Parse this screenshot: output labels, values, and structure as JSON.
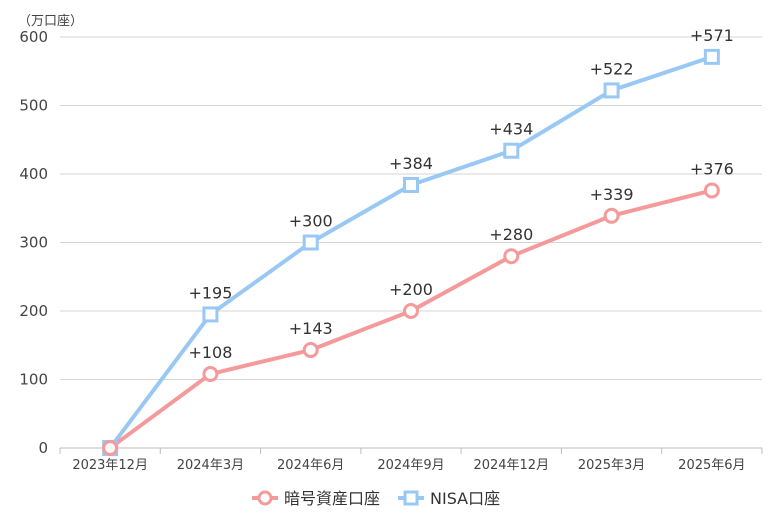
{
  "chart_data": {
    "type": "line",
    "unit_label": "（万口座）",
    "categories": [
      "2023年12月",
      "2024年3月",
      "2024年6月",
      "2024年9月",
      "2024年12月",
      "2025年3月",
      "2025年6月"
    ],
    "ylim": [
      0,
      600
    ],
    "yticks": [
      0,
      100,
      200,
      300,
      400,
      500,
      600
    ],
    "grid": true,
    "legend_position": "bottom",
    "series": [
      {
        "name": "暗号資産口座",
        "marker": "circle",
        "color": "#f59a9a",
        "values": [
          0,
          108,
          143,
          200,
          280,
          339,
          376
        ],
        "labels": [
          "",
          "+108",
          "+143",
          "+200",
          "+280",
          "+339",
          "+376"
        ]
      },
      {
        "name": "NISA口座",
        "marker": "square",
        "color": "#99c8f5",
        "values": [
          0,
          195,
          300,
          384,
          434,
          522,
          571
        ],
        "labels": [
          "",
          "+195",
          "+300",
          "+384",
          "+434",
          "+522",
          "+571"
        ]
      }
    ]
  }
}
